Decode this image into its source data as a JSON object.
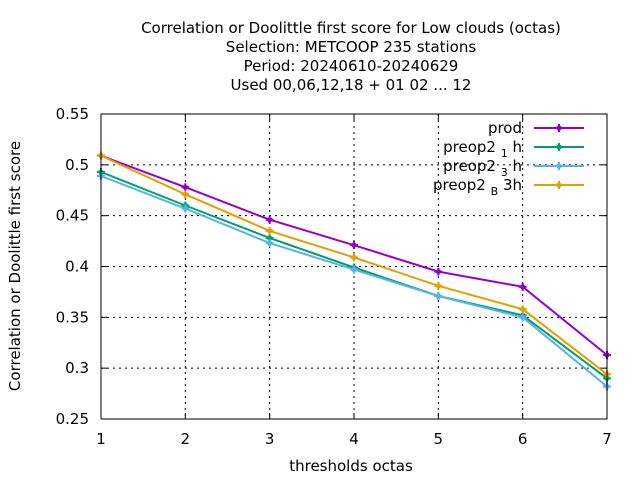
{
  "chart_data": {
    "type": "line",
    "title_lines": [
      "Correlation or Doolittle first score  for Low clouds (octas)",
      "Selection: METCOOP    235 stations",
      "Period: 20240610-20240629",
      "Used  00,06,12,18 + 01 02 ... 12"
    ],
    "xlabel": "thresholds octas",
    "ylabel": "Correlation or Doolittle first score",
    "x": [
      1,
      2,
      3,
      4,
      5,
      6,
      7
    ],
    "xlim": [
      1,
      7
    ],
    "ylim": [
      0.25,
      0.55
    ],
    "yticks": [
      "0.25",
      "0.3",
      "0.35",
      "0.4",
      "0.45",
      "0.5",
      "0.55"
    ],
    "xticks": [
      "1",
      "2",
      "3",
      "4",
      "5",
      "6",
      "7"
    ],
    "grid": true,
    "legend_position": "top-right",
    "series": [
      {
        "name": "prod",
        "name_main": "prod",
        "name_sub": "",
        "name_tail": "",
        "color": "#9400d3",
        "values": [
          0.509,
          0.478,
          0.446,
          0.421,
          0.395,
          0.38,
          0.313
        ]
      },
      {
        "name": "preop2 1 h",
        "name_main": "preop2 ",
        "name_sub": "1",
        "name_tail": " h",
        "color": "#009e73",
        "values": [
          0.493,
          0.46,
          0.428,
          0.399,
          0.371,
          0.352,
          0.29
        ]
      },
      {
        "name": "preop2 3 h",
        "name_main": "preop2 ",
        "name_sub": "3",
        "name_tail": " h",
        "color": "#56b4e9",
        "values": [
          0.489,
          0.457,
          0.423,
          0.397,
          0.371,
          0.35,
          0.282
        ]
      },
      {
        "name": "preop2 B 3h",
        "name_main": "preop2 ",
        "name_sub": "B",
        "name_tail": " 3h",
        "color": "#e69f00",
        "values": [
          0.509,
          0.471,
          0.435,
          0.409,
          0.381,
          0.358,
          0.294
        ]
      }
    ]
  }
}
